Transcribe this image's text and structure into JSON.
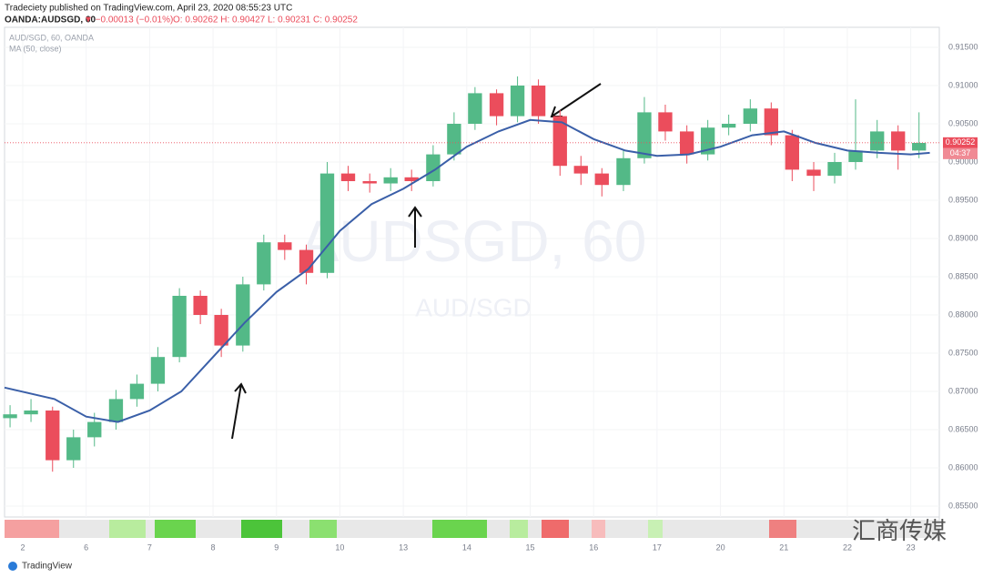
{
  "header": {
    "publisher": "Tradeciety published on TradingView.com, April 23, 2020 08:55:23 UTC",
    "symbol": "OANDA:AUDSGD, 60",
    "change": "▼ −0.00013 (−0.01%)",
    "ohlc": "O: 0.90262  H: 0.90427  L: 0.90231  C: 0.90252"
  },
  "chart_data": {
    "type": "candlestick",
    "legend_symbol": "AUD/SGD, 60, OANDA",
    "watermark": "AUDSGD, 60",
    "watermark_sub": "AUD/SGD",
    "up_color": "#53b987",
    "down_color": "#eb4d5c",
    "x": [
      -0.2,
      0.13,
      0.47,
      0.8,
      1.13,
      1.47,
      1.8,
      2.13,
      2.47,
      2.8,
      3.13,
      3.47,
      3.8,
      4.13,
      4.47,
      4.8,
      5.13,
      5.47,
      5.8,
      6.13,
      6.47,
      6.8,
      7.13,
      7.47,
      7.8,
      8.13,
      8.47,
      8.8,
      9.13,
      9.47,
      9.8,
      10.13,
      10.47,
      10.8,
      11.13,
      11.47,
      11.8,
      12.13,
      12.47,
      12.8,
      13.13,
      13.47,
      13.8,
      14.13
    ],
    "open": [
      0.8665,
      0.867,
      0.8675,
      0.861,
      0.864,
      0.866,
      0.869,
      0.871,
      0.8745,
      0.8825,
      0.88,
      0.876,
      0.884,
      0.8895,
      0.8885,
      0.8855,
      0.8985,
      0.8975,
      0.8972,
      0.898,
      0.8975,
      0.901,
      0.905,
      0.909,
      0.906,
      0.91,
      0.906,
      0.8995,
      0.8985,
      0.897,
      0.9005,
      0.9065,
      0.904,
      0.901,
      0.9045,
      0.905,
      0.907,
      0.9035,
      0.899,
      0.8982,
      0.9,
      0.9015,
      0.904,
      0.9015
    ],
    "high": [
      0.8682,
      0.869,
      0.868,
      0.865,
      0.8672,
      0.8702,
      0.8722,
      0.8758,
      0.8835,
      0.8832,
      0.8808,
      0.885,
      0.8905,
      0.8905,
      0.8892,
      0.9,
      0.8995,
      0.8985,
      0.8992,
      0.899,
      0.9022,
      0.9065,
      0.9098,
      0.9095,
      0.9112,
      0.9108,
      0.9068,
      0.9008,
      0.8992,
      0.9015,
      0.9085,
      0.9075,
      0.9048,
      0.9055,
      0.9062,
      0.9082,
      0.9078,
      0.9042,
      0.9,
      0.9012,
      0.9082,
      0.9055,
      0.9048,
      0.9065
    ],
    "low": [
      0.8653,
      0.866,
      0.8595,
      0.86,
      0.8628,
      0.865,
      0.868,
      0.87,
      0.8738,
      0.8788,
      0.8745,
      0.8752,
      0.8832,
      0.8872,
      0.884,
      0.8848,
      0.8962,
      0.896,
      0.8962,
      0.8962,
      0.8968,
      0.9002,
      0.9042,
      0.9048,
      0.9052,
      0.905,
      0.8982,
      0.897,
      0.8955,
      0.8962,
      0.8998,
      0.9028,
      0.8998,
      0.9002,
      0.9035,
      0.904,
      0.9022,
      0.8975,
      0.8962,
      0.8972,
      0.899,
      0.9005,
      0.899,
      0.9005
    ],
    "close": [
      0.867,
      0.8675,
      0.861,
      0.864,
      0.866,
      0.869,
      0.871,
      0.8745,
      0.8825,
      0.88,
      0.876,
      0.884,
      0.8895,
      0.8885,
      0.8855,
      0.8985,
      0.8975,
      0.8972,
      0.898,
      0.8975,
      0.901,
      0.905,
      0.909,
      0.906,
      0.91,
      0.906,
      0.8995,
      0.8985,
      0.897,
      0.9005,
      0.9065,
      0.904,
      0.901,
      0.9045,
      0.905,
      0.907,
      0.9035,
      0.899,
      0.8982,
      0.9,
      0.9015,
      0.904,
      0.9015,
      0.9025
    ],
    "ma": {
      "name": "MA (50, close)",
      "color": "#3a5fa8",
      "x": [
        -0.287,
        0.5,
        1,
        1.5,
        2,
        2.5,
        3,
        3.5,
        4,
        4.5,
        5,
        5.5,
        6,
        6.5,
        7,
        7.5,
        8,
        8.5,
        9,
        9.5,
        10,
        10.5,
        11,
        11.5,
        12,
        12.5,
        13,
        13.5,
        14,
        14.3
      ],
      "values": [
        0.8705,
        0.869,
        0.8667,
        0.866,
        0.8675,
        0.87,
        0.8745,
        0.879,
        0.883,
        0.886,
        0.891,
        0.8945,
        0.8965,
        0.899,
        0.902,
        0.904,
        0.9055,
        0.9052,
        0.903,
        0.9015,
        0.9008,
        0.901,
        0.902,
        0.9035,
        0.904,
        0.9025,
        0.9015,
        0.9012,
        0.901,
        0.9012
      ]
    },
    "last_price": {
      "value": 0.90252,
      "label": "0.90252"
    },
    "countdown": "04:37",
    "xlim": [
      -0.287,
      14.45
    ],
    "ylim": [
      0.85357,
      0.91762
    ],
    "xticks": [
      {
        "value": 0,
        "label": "2"
      },
      {
        "value": 1,
        "label": "6"
      },
      {
        "value": 2,
        "label": "7"
      },
      {
        "value": 3,
        "label": "8"
      },
      {
        "value": 4,
        "label": "9"
      },
      {
        "value": 5,
        "label": "10"
      },
      {
        "value": 6,
        "label": "13"
      },
      {
        "value": 7,
        "label": "14"
      },
      {
        "value": 8,
        "label": "15"
      },
      {
        "value": 9,
        "label": "16"
      },
      {
        "value": 10,
        "label": "17"
      },
      {
        "value": 11,
        "label": "20"
      },
      {
        "value": 12,
        "label": "21"
      },
      {
        "value": 13,
        "label": "22"
      },
      {
        "value": 14,
        "label": "23"
      }
    ],
    "yticks": [
      {
        "value": 0.915,
        "label": "0.91500"
      },
      {
        "value": 0.91,
        "label": "0.91000"
      },
      {
        "value": 0.905,
        "label": "0.90500"
      },
      {
        "value": 0.9,
        "label": "0.90000"
      },
      {
        "value": 0.895,
        "label": "0.89500"
      },
      {
        "value": 0.89,
        "label": "0.89000"
      },
      {
        "value": 0.885,
        "label": "0.88500"
      },
      {
        "value": 0.88,
        "label": "0.88000"
      },
      {
        "value": 0.875,
        "label": "0.87500"
      },
      {
        "value": 0.87,
        "label": "0.87000"
      },
      {
        "value": 0.865,
        "label": "0.86500"
      },
      {
        "value": 0.86,
        "label": "0.86000"
      },
      {
        "value": 0.855,
        "label": "0.85500"
      }
    ]
  },
  "footer": {
    "brand": "TradingView",
    "watermark": "汇商传媒"
  }
}
